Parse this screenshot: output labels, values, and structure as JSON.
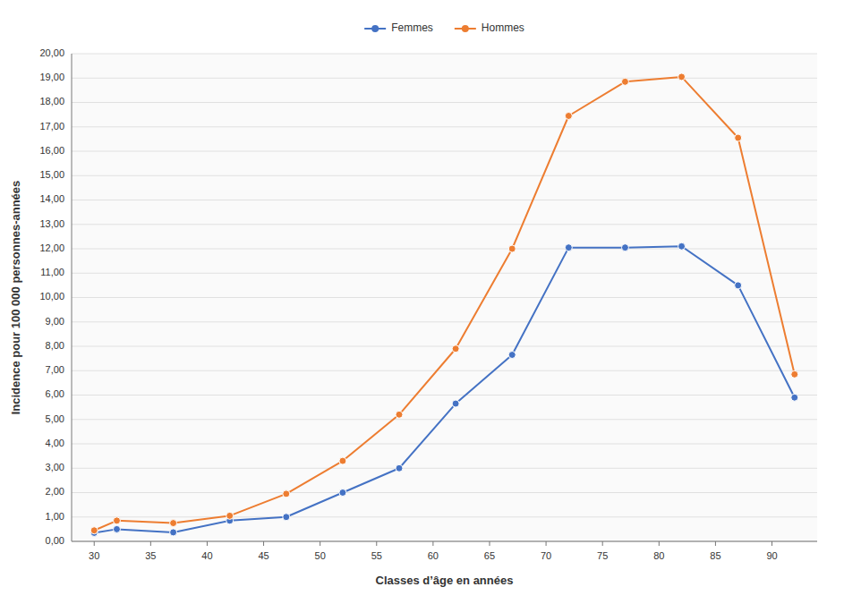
{
  "chart_data": {
    "type": "line",
    "xlabel": "Classes d’âge en années",
    "ylabel": "Incidence pour 100 000 personnes-années",
    "x": [
      30,
      32,
      37,
      42,
      47,
      52,
      57,
      62,
      67,
      72,
      77,
      82,
      87,
      92
    ],
    "series": [
      {
        "name": "Femmes",
        "color": "#4472C4",
        "marker": "circle",
        "values": [
          0.35,
          0.5,
          0.37,
          0.85,
          1.0,
          2.0,
          3.0,
          5.65,
          7.65,
          12.05,
          12.05,
          12.1,
          10.5,
          5.9
        ]
      },
      {
        "name": "Hommes",
        "color": "#ED7D31",
        "marker": "circle",
        "values": [
          0.45,
          0.85,
          0.75,
          1.05,
          1.95,
          3.3,
          5.2,
          7.9,
          12.0,
          17.45,
          18.85,
          19.05,
          16.55,
          6.85
        ]
      }
    ],
    "xlim": [
      28,
      94
    ],
    "xticks": [
      30,
      35,
      40,
      45,
      50,
      55,
      60,
      65,
      70,
      75,
      80,
      85,
      90
    ],
    "ylim": [
      0,
      20.0
    ],
    "yticks": [
      {
        "value": 0,
        "label": "0,00"
      },
      {
        "value": 1,
        "label": "1,00"
      },
      {
        "value": 2,
        "label": "2,00"
      },
      {
        "value": 3,
        "label": "3,00"
      },
      {
        "value": 4,
        "label": "4,00"
      },
      {
        "value": 5,
        "label": "5,00"
      },
      {
        "value": 6,
        "label": "6,00"
      },
      {
        "value": 7,
        "label": "7,00"
      },
      {
        "value": 8,
        "label": "8,00"
      },
      {
        "value": 9,
        "label": "9,00"
      },
      {
        "value": 10,
        "label": "10,00"
      },
      {
        "value": 11,
        "label": "11,00"
      },
      {
        "value": 12,
        "label": "12,00"
      },
      {
        "value": 13,
        "label": "13,00"
      },
      {
        "value": 14,
        "label": "14,00"
      },
      {
        "value": 15,
        "label": "15,00"
      },
      {
        "value": 16,
        "label": "16,00"
      },
      {
        "value": 17,
        "label": "17,00"
      },
      {
        "value": 18,
        "label": "18,00"
      },
      {
        "value": 19,
        "label": "19,00"
      },
      {
        "value": 20,
        "label": "20,00"
      }
    ],
    "grid": true,
    "legend": "top"
  }
}
